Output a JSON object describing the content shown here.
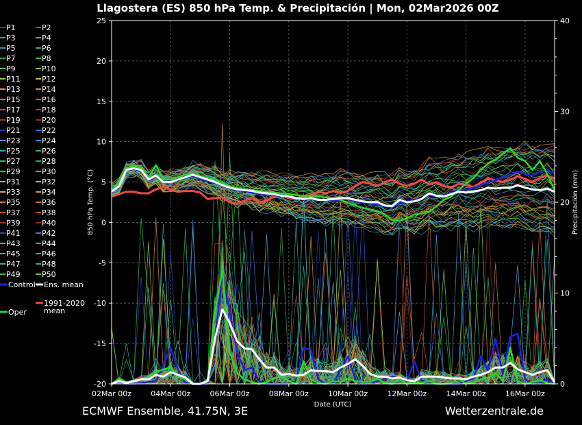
{
  "title": "Llagostera  (ES)  850 hPa Temp. & Precipitación | Mon, 02Mar2026 00Z",
  "footer": {
    "left": "ECMWF Ensemble, 41.75N, 3E",
    "right": "Wetterzentrale.de"
  },
  "chart_data": {
    "type": "line",
    "title": "Llagostera  (ES)  850 hPa Temp. & Precipitación | Mon, 02Mar2026 00Z",
    "xlabel": "Date (UTC)",
    "ylabel": "850 hPa Temp. (°C)",
    "y2label": "Precipitación (mm)",
    "xlim": [
      0,
      15
    ],
    "ylim": [
      -20,
      25
    ],
    "y2lim": [
      0,
      40
    ],
    "grid": true,
    "x_ticks": [
      {
        "x": 0,
        "label": "02Mar 00z"
      },
      {
        "x": 2,
        "label": "04Mar 00z"
      },
      {
        "x": 4,
        "label": "06Mar 00z"
      },
      {
        "x": 6,
        "label": "08Mar 00z"
      },
      {
        "x": 8,
        "label": "10Mar 00z"
      },
      {
        "x": 10,
        "label": "12Mar 00z"
      },
      {
        "x": 12,
        "label": "14Mar 00z"
      },
      {
        "x": 14,
        "label": "16Mar 00z"
      }
    ],
    "y_ticks": [
      25,
      20,
      15,
      10,
      5,
      0,
      -5,
      -10,
      -15,
      -20
    ],
    "y2_ticks": [
      40,
      30,
      20,
      10,
      0
    ],
    "legend": {
      "members": [
        "P1",
        "P2",
        "P3",
        "P4",
        "P5",
        "P6",
        "P7",
        "P8",
        "P9",
        "P10",
        "P11",
        "P12",
        "P13",
        "P14",
        "P15",
        "P16",
        "P17",
        "P18",
        "P19",
        "P20",
        "P21",
        "P22",
        "P23",
        "P24",
        "P25",
        "P26",
        "P27",
        "P28",
        "P29",
        "P30",
        "P31",
        "P32",
        "P33",
        "P34",
        "P35",
        "P36",
        "P37",
        "P38",
        "P39",
        "P40",
        "P41",
        "P42",
        "P43",
        "P44",
        "P45",
        "P46",
        "P47",
        "P48",
        "P49",
        "P50"
      ],
      "control": "Control",
      "ens_mean": "Ens. mean",
      "clim_mean": "1991-2020 mean",
      "oper": "Oper",
      "placement": "left"
    },
    "member_colors": [
      "#2b3dd6",
      "#3b6fe0",
      "#3fa1c4",
      "#2fb0d0",
      "#2a9c9c",
      "#1fb486",
      "#27a860",
      "#2fbf4a",
      "#4fc63a",
      "#7ed034",
      "#a4cf38",
      "#c9c43e",
      "#d2a640",
      "#d8903c",
      "#d47a3a",
      "#c8602e",
      "#c65a28",
      "#b94224",
      "#a83424",
      "#9c2a20",
      "#2338b0",
      "#2a6bd8",
      "#4aa8d8",
      "#2ea0c0",
      "#27b0a8",
      "#25b58c",
      "#2fba6c",
      "#1fb84e",
      "#45c540",
      "#64c93a",
      "#92cc36",
      "#b3c93b",
      "#cfb43f",
      "#d69a3c",
      "#d4843a",
      "#cd6a32",
      "#c8582a",
      "#bd4826",
      "#ad3624",
      "#962b22",
      "#3047c8",
      "#3a7ee0",
      "#53aee0",
      "#3aa6c8",
      "#30b6a6",
      "#2cb893",
      "#34bc76",
      "#25b85a",
      "#48c23e",
      "#78cc38"
    ],
    "series": [
      {
        "name": "Ens. mean",
        "color": "#ffffff",
        "axis": "left",
        "x": [
          0,
          0.25,
          0.5,
          0.75,
          1,
          1.25,
          1.5,
          1.75,
          2,
          2.25,
          2.5,
          2.75,
          3,
          3.25,
          3.5,
          3.75,
          4,
          4.25,
          4.5,
          4.75,
          5,
          5.25,
          5.5,
          5.75,
          6,
          6.25,
          6.5,
          6.75,
          7,
          7.25,
          7.5,
          7.75,
          8,
          8.25,
          8.5,
          8.75,
          9,
          9.25,
          9.5,
          9.75,
          10,
          10.25,
          10.5,
          10.75,
          11,
          11.25,
          11.5,
          11.75,
          12,
          12.25,
          12.5,
          12.75,
          13,
          13.25,
          13.5,
          13.75,
          14,
          14.25,
          14.5,
          14.75,
          15
        ],
        "values": [
          3.8,
          4.5,
          6.5,
          6.7,
          6.5,
          5.3,
          5.8,
          5.0,
          5.0,
          5.3,
          5.6,
          5.9,
          5.6,
          5.3,
          5.0,
          4.6,
          4.3,
          4.1,
          4.0,
          3.9,
          3.7,
          3.6,
          3.5,
          3.3,
          3.2,
          3.0,
          2.9,
          3.0,
          2.8,
          2.8,
          2.9,
          3.0,
          3.0,
          2.8,
          2.6,
          2.5,
          2.5,
          2.1,
          2.0,
          2.8,
          2.5,
          2.6,
          2.9,
          3.6,
          3.3,
          3.2,
          3.5,
          3.8,
          3.7,
          3.8,
          4.0,
          4.3,
          4.2,
          4.3,
          4.3,
          4.6,
          4.3,
          4.1,
          4.0,
          4.2,
          3.8
        ]
      },
      {
        "name": "1991-2020 mean",
        "color": "#ff4444",
        "axis": "left",
        "x": [
          0,
          0.25,
          0.5,
          0.75,
          1,
          1.25,
          1.5,
          1.75,
          2,
          2.25,
          2.5,
          2.75,
          3,
          3.25,
          3.5,
          3.75,
          4,
          4.25,
          4.5,
          4.75,
          5,
          5.25,
          5.5,
          5.75,
          6,
          6.25,
          6.5,
          6.75,
          7,
          7.25,
          7.5,
          7.75,
          8,
          8.25,
          8.5,
          8.75,
          9,
          9.25,
          9.5,
          9.75,
          10,
          10.25,
          10.5,
          10.75,
          11,
          11.25,
          11.5,
          11.75,
          12,
          12.25,
          12.5,
          12.75,
          13,
          13.25,
          13.5,
          13.75,
          14,
          14.25,
          14.5,
          14.75,
          15
        ],
        "values": [
          3.2,
          3.5,
          3.8,
          3.8,
          3.6,
          3.6,
          4.1,
          4.4,
          4.0,
          3.8,
          3.9,
          3.9,
          3.7,
          2.9,
          3.0,
          3.1,
          2.5,
          2.3,
          2.7,
          3.0,
          2.5,
          2.7,
          3.2,
          3.3,
          3.0,
          2.9,
          3.1,
          3.4,
          3.8,
          3.6,
          3.9,
          3.7,
          3.9,
          4.5,
          5.0,
          4.8,
          4.5,
          5.0,
          5.3,
          4.8,
          4.5,
          4.8,
          5.3,
          4.7,
          5.0,
          4.5,
          4.3,
          4.8,
          4.6,
          4.4,
          4.9,
          5.5,
          5.2,
          5.0,
          5.3,
          5.7,
          5.4,
          5.0,
          5.5,
          5.8,
          5.4
        ]
      },
      {
        "name": "Oper",
        "color": "#22dd22",
        "axis": "left",
        "x": [
          0,
          0.25,
          0.5,
          0.75,
          1,
          1.25,
          1.5,
          1.75,
          2,
          2.25,
          2.5,
          2.75,
          3,
          3.25,
          3.5,
          3.75,
          4,
          4.25,
          4.5,
          4.75,
          5,
          5.25,
          5.5,
          5.75,
          6,
          6.25,
          6.5,
          6.75,
          7,
          7.25,
          7.5,
          7.75,
          8,
          8.25,
          8.5,
          8.75,
          9,
          9.25,
          9.5,
          9.75,
          10,
          10.25,
          10.5,
          10.75,
          11,
          11.25,
          11.5,
          11.75,
          12,
          12.25,
          12.5,
          12.75,
          13,
          13.25,
          13.5,
          13.75,
          14,
          14.25,
          14.5,
          14.75,
          15
        ],
        "values": [
          3.8,
          5.0,
          6.7,
          7.0,
          6.8,
          5.5,
          7.1,
          5.3,
          5.3,
          5.6,
          5.9,
          6.1,
          5.7,
          5.5,
          5.2,
          4.9,
          4.5,
          4.2,
          4.1,
          4.0,
          3.9,
          3.8,
          3.7,
          3.6,
          3.5,
          3.4,
          3.3,
          3.3,
          3.2,
          3.1,
          3.0,
          2.8,
          2.4,
          2.1,
          1.8,
          1.6,
          1.4,
          1.0,
          0.3,
          0.2,
          0.5,
          1.0,
          1.1,
          1.3,
          2.0,
          2.8,
          3.2,
          4.0,
          4.8,
          5.5,
          6.5,
          7.3,
          7.8,
          8.5,
          9.2,
          8.0,
          7.6,
          6.5,
          7.6,
          6.0,
          4.0
        ]
      },
      {
        "name": "Control",
        "color": "#1f1fe6",
        "axis": "left",
        "x": [
          0,
          0.25,
          0.5,
          0.75,
          1,
          1.25,
          1.5,
          1.75,
          2,
          2.25,
          2.5,
          2.75,
          3,
          3.25,
          3.5,
          3.75,
          4,
          4.25,
          4.5,
          4.75,
          5,
          5.25,
          5.5,
          5.75,
          6,
          6.25,
          6.5,
          6.75,
          7,
          7.25,
          7.5,
          7.75,
          8,
          8.25,
          8.5,
          8.75,
          9,
          9.25,
          9.5,
          9.75,
          10,
          10.25,
          10.5,
          10.75,
          11,
          11.25,
          11.5,
          11.75,
          12,
          12.25,
          12.5,
          12.75,
          13,
          13.25,
          13.5,
          13.75,
          14,
          14.25,
          14.5,
          14.75,
          15
        ],
        "values": [
          3.6,
          4.6,
          6.4,
          6.6,
          6.4,
          5.2,
          5.7,
          5.0,
          5.1,
          5.2,
          5.5,
          5.7,
          5.4,
          5.1,
          4.9,
          4.5,
          4.2,
          4.0,
          3.9,
          3.7,
          3.6,
          3.5,
          3.4,
          3.2,
          3.1,
          3.0,
          2.8,
          2.9,
          2.7,
          2.8,
          2.6,
          2.7,
          2.9,
          2.6,
          2.5,
          2.3,
          2.2,
          2.0,
          1.9,
          2.4,
          2.6,
          2.8,
          3.0,
          3.4,
          3.2,
          3.4,
          3.7,
          4.0,
          4.1,
          4.3,
          4.6,
          5.0,
          5.2,
          5.6,
          5.9,
          6.3,
          6.0,
          5.8,
          6.2,
          6.5,
          6.0
        ]
      },
      {
        "name": "Ens. mean precipitation",
        "color": "#ffffff",
        "axis": "right",
        "x": [
          0,
          0.25,
          0.5,
          0.75,
          1,
          1.25,
          1.5,
          1.75,
          2,
          2.25,
          2.5,
          2.75,
          3,
          3.25,
          3.5,
          3.75,
          4,
          4.25,
          4.5,
          4.75,
          5,
          5.25,
          5.5,
          5.75,
          6,
          6.25,
          6.5,
          6.75,
          7,
          7.25,
          7.5,
          7.75,
          8,
          8.25,
          8.5,
          8.75,
          9,
          9.25,
          9.5,
          9.75,
          10,
          10.25,
          10.5,
          10.75,
          11,
          11.25,
          11.5,
          11.75,
          12,
          12.25,
          12.5,
          12.75,
          13,
          13.25,
          13.5,
          13.75,
          14,
          14.25,
          14.5,
          14.75,
          15
        ],
        "values": [
          0,
          0.3,
          0.1,
          0.3,
          0.5,
          0.5,
          1.0,
          0.8,
          1.3,
          1.0,
          0.7,
          0,
          0,
          0.3,
          5.0,
          8.2,
          6.7,
          4.7,
          3.9,
          3.8,
          2.7,
          1.8,
          1.8,
          1.0,
          1.1,
          0.9,
          1.0,
          1.5,
          1.4,
          1.4,
          1.3,
          1.8,
          2.2,
          2.7,
          2.0,
          1.1,
          0.8,
          0.8,
          0.6,
          0.7,
          0.4,
          0.3,
          0.8,
          0.8,
          0.8,
          0.7,
          0.6,
          0.6,
          0.5,
          0.8,
          1.0,
          1.3,
          1.8,
          1.8,
          2.3,
          1.6,
          1.3,
          1.0,
          1.3,
          1.5,
          0.2
        ]
      },
      {
        "name": "Control precipitation",
        "color": "#1f1fe6",
        "axis": "right",
        "x": [
          0,
          0.25,
          0.5,
          0.75,
          1,
          1.25,
          1.5,
          1.75,
          2,
          2.25,
          2.5,
          2.75,
          3,
          3.25,
          3.5,
          3.75,
          4,
          4.25,
          4.5,
          4.75,
          5,
          5.25,
          5.5,
          5.75,
          6,
          6.25,
          6.5,
          6.75,
          7,
          7.25,
          7.5,
          7.75,
          8,
          8.25,
          8.5,
          8.75,
          9,
          9.25,
          9.5,
          9.75,
          10,
          10.25,
          10.5,
          10.75,
          11,
          11.25,
          11.5,
          11.75,
          12,
          12.25,
          12.5,
          12.75,
          13,
          13.25,
          13.5,
          13.75,
          14,
          14.25,
          14.5,
          14.75,
          15
        ],
        "values": [
          0,
          0.2,
          0,
          0,
          0.1,
          0.2,
          0.3,
          2.0,
          4.0,
          1.5,
          0.1,
          0,
          0,
          0,
          5.0,
          12.0,
          8.0,
          3.5,
          1.5,
          1.8,
          0.3,
          0,
          0,
          0,
          0,
          0.3,
          4.0,
          3.7,
          0.5,
          0,
          0.1,
          1.5,
          3.0,
          0.5,
          0,
          0.1,
          0.3,
          0.5,
          0.8,
          0.6,
          0.3,
          2.5,
          0.4,
          0.1,
          0,
          0,
          0,
          0,
          0.3,
          0.6,
          3.0,
          1.5,
          5.0,
          1.0,
          5.2,
          5.5,
          0.5,
          0,
          0.1,
          0.5,
          0
        ]
      },
      {
        "name": "Oper precipitation",
        "color": "#22dd22",
        "axis": "right",
        "x": [
          0,
          0.25,
          0.5,
          0.75,
          1,
          1.25,
          1.5,
          1.75,
          2,
          2.25,
          2.5,
          2.75,
          3,
          3.25,
          3.5,
          3.75,
          4,
          4.25,
          4.5,
          4.75,
          5,
          5.25,
          5.5,
          5.75,
          6,
          6.25,
          6.5,
          6.75,
          7,
          7.25,
          7.5,
          7.75,
          8,
          8.25,
          8.5,
          8.75,
          9,
          9.25,
          9.5,
          9.75,
          10,
          10.25,
          10.5,
          10.75,
          11,
          11.25,
          11.5,
          11.75,
          12,
          12.25,
          12.5,
          12.75,
          13,
          13.25,
          13.5,
          13.75,
          14,
          14.25,
          14.5,
          14.75,
          15
        ],
        "values": [
          0,
          0.6,
          0.2,
          0.3,
          0.4,
          0.8,
          1.3,
          1.6,
          1.8,
          0.8,
          0.5,
          0,
          0,
          0.3,
          8.0,
          12.5,
          3.5,
          1.2,
          0.5,
          0.2,
          0,
          0.2,
          0.6,
          0.8,
          0.3,
          0,
          2.5,
          0.5,
          0.1,
          0,
          0.3,
          0.2,
          0.6,
          0.3,
          0.2,
          0.2,
          0.6,
          0.1,
          0,
          0.5,
          0,
          0.2,
          0.1,
          0.3,
          0,
          0,
          0.1,
          0.6,
          0,
          0.2,
          0.5,
          0.7,
          1.2,
          0.3,
          4.0,
          0.3,
          0,
          0.2,
          0.4,
          0.1,
          0
        ]
      }
    ]
  }
}
